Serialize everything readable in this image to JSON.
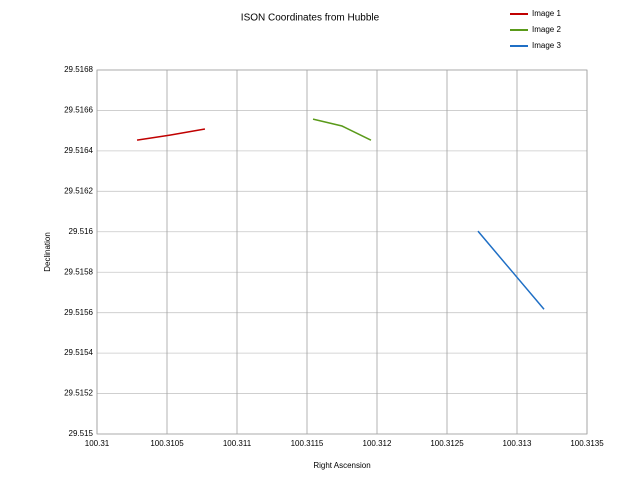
{
  "chart_data": {
    "type": "line",
    "title": "ISON Coordinates from Hubble",
    "x_label": "Right Ascension",
    "y_label": "Declination",
    "xlim": [
      100.31,
      100.3135
    ],
    "xticks": [
      100.31,
      100.3105,
      100.311,
      100.3115,
      100.312,
      100.3125,
      100.313,
      100.3135
    ],
    "ylim": [
      29.515,
      29.5168
    ],
    "yticks": [
      29.515,
      29.5152,
      29.5154,
      29.5156,
      29.5158,
      29.516,
      29.5162,
      29.5164,
      29.5166,
      29.5168
    ],
    "grid": true,
    "legend": "top-right",
    "series": [
      {
        "name": "Image 1",
        "color": "#c00000",
        "x": [
          100.310286,
          100.310521,
          100.310771
        ],
        "values": [
          29.516453,
          29.516478,
          29.516508
        ]
      },
      {
        "name": "Image 2",
        "color": "#5a9a1a",
        "x": [
          100.311543,
          100.31175,
          100.311957
        ],
        "values": [
          29.516557,
          29.516523,
          29.516453
        ]
      },
      {
        "name": "Image 3",
        "color": "#1f6fc5",
        "x": [
          100.312721,
          100.312957,
          100.313193
        ],
        "values": [
          29.516003,
          29.51581,
          29.515617
        ]
      }
    ]
  }
}
